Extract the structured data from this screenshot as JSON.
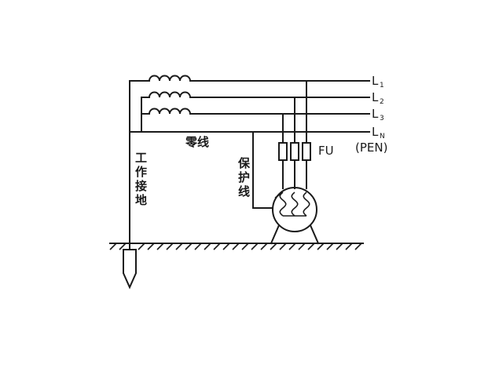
{
  "lines": {
    "l1": {
      "label": "L",
      "sub": "1"
    },
    "l2": {
      "label": "L",
      "sub": "2"
    },
    "l3": {
      "label": "L",
      "sub": "3"
    },
    "ln": {
      "label": "L",
      "sub": "N"
    }
  },
  "labels": {
    "pen": "(PEN)",
    "fu": "FU",
    "neutral": "零线",
    "protective": [
      "保",
      "护",
      "线"
    ],
    "work_ground": [
      "工",
      "作",
      "接",
      "地"
    ]
  }
}
